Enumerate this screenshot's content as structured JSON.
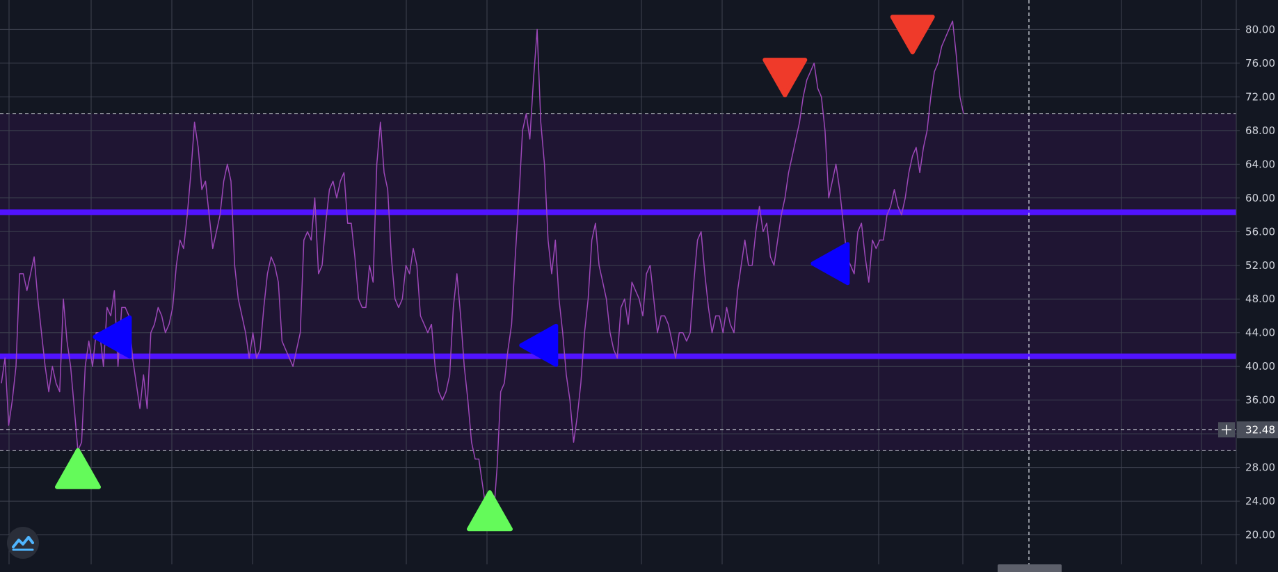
{
  "chart_data": {
    "type": "line",
    "title": "",
    "ylabel": "",
    "xlabel": "",
    "ylim": [
      16.5,
      83.5
    ],
    "grid": true,
    "y_ticks": [
      "20.00",
      "24.00",
      "28.00",
      "32.00",
      "36.00",
      "40.00",
      "44.00",
      "48.00",
      "52.00",
      "56.00",
      "60.00",
      "64.00",
      "68.00",
      "72.00",
      "76.00",
      "80.00"
    ],
    "series": [
      {
        "values": [
          38,
          41,
          33,
          36,
          40,
          51,
          51,
          49,
          51,
          53,
          48,
          44,
          40,
          37,
          40,
          38,
          37,
          48,
          43,
          40,
          35,
          30,
          31,
          40,
          43,
          40,
          44,
          44,
          40,
          47,
          46,
          49,
          40,
          47,
          47,
          46,
          41,
          38,
          35,
          39,
          35,
          44,
          45,
          47,
          46,
          44,
          45,
          47,
          52,
          55,
          54,
          58,
          63,
          69,
          66,
          61,
          62,
          58,
          54,
          56,
          58,
          62,
          64,
          62,
          52,
          48,
          46,
          44,
          41,
          44,
          41,
          42,
          47,
          51,
          53,
          52,
          50,
          43,
          42,
          41,
          40,
          42,
          44,
          55,
          56,
          55,
          60,
          51,
          52,
          57,
          61,
          62,
          60,
          62,
          63,
          57,
          57,
          53,
          48,
          47,
          47,
          52,
          50,
          64,
          69,
          63,
          61,
          53,
          48,
          47,
          48,
          52,
          51,
          54,
          52,
          46,
          45,
          44,
          45,
          40,
          37,
          36,
          37,
          39,
          47,
          51,
          46,
          40,
          36,
          31,
          29,
          29,
          26,
          23,
          24,
          22,
          28,
          37,
          38,
          42,
          45,
          53,
          60,
          68,
          70,
          67,
          74,
          80,
          69,
          64,
          55,
          51,
          55,
          48,
          44,
          39,
          36,
          31,
          34,
          38,
          44,
          48,
          55,
          57,
          52,
          50,
          48,
          44,
          42,
          41,
          47,
          48,
          45,
          50,
          49,
          48,
          46,
          51,
          52,
          48,
          44,
          46,
          46,
          45,
          43,
          41,
          44,
          44,
          43,
          44,
          50,
          55,
          56,
          51,
          47,
          44,
          46,
          46,
          44,
          47,
          45,
          44,
          49,
          52,
          55,
          52,
          52,
          56,
          59,
          56,
          57,
          53,
          52,
          55,
          58,
          60,
          63,
          65,
          67,
          69,
          72,
          74,
          75,
          76,
          73,
          72,
          68,
          60,
          62,
          64,
          61,
          57,
          53,
          52,
          51,
          56,
          57,
          53,
          50,
          55,
          54,
          55,
          55,
          58,
          59,
          61,
          59,
          58,
          60,
          63,
          65,
          66,
          63,
          66,
          68,
          72,
          75,
          76,
          78,
          79,
          80,
          81,
          77,
          72,
          70
        ],
        "color": "#9c47b8"
      }
    ],
    "bands": {
      "overbought": 70,
      "oversold": 30,
      "fill_color": "#1f1533"
    },
    "horizontal_lines": [
      {
        "value": 58.3,
        "color": "#5113ff"
      },
      {
        "value": 41.2,
        "color": "#5113ff"
      }
    ],
    "crosshair": {
      "value_label": "32.48",
      "value": 32.48
    },
    "markers": [
      {
        "type": "buy",
        "shape": "triangle-up",
        "color": "#64fa5a",
        "index": 21,
        "value": 27.5
      },
      {
        "type": "buy",
        "shape": "triangle-up",
        "color": "#64fa5a",
        "index": 134,
        "value": 22.5
      },
      {
        "type": "neutral",
        "shape": "triangle-left",
        "color": "#0a00ff",
        "index": 31,
        "value": 43.5
      },
      {
        "type": "neutral",
        "shape": "triangle-left",
        "color": "#0a00ff",
        "index": 148,
        "value": 42.5
      },
      {
        "type": "neutral",
        "shape": "triangle-left",
        "color": "#0a00ff",
        "index": 228,
        "value": 52.2
      },
      {
        "type": "sell",
        "shape": "triangle-down",
        "color": "#ef3a2a",
        "index": 215,
        "value": 74.5
      },
      {
        "type": "sell",
        "shape": "triangle-down",
        "color": "#ef3a2a",
        "index": 250,
        "value": 79.6
      }
    ]
  },
  "colors": {
    "background": "#131722",
    "grid": "#3f4350",
    "dashed": "#b2b5be",
    "axis_text": "#d1d4dc"
  },
  "icons": {
    "logo": "tradingview-logo-icon",
    "crosshair": "plus-icon"
  }
}
